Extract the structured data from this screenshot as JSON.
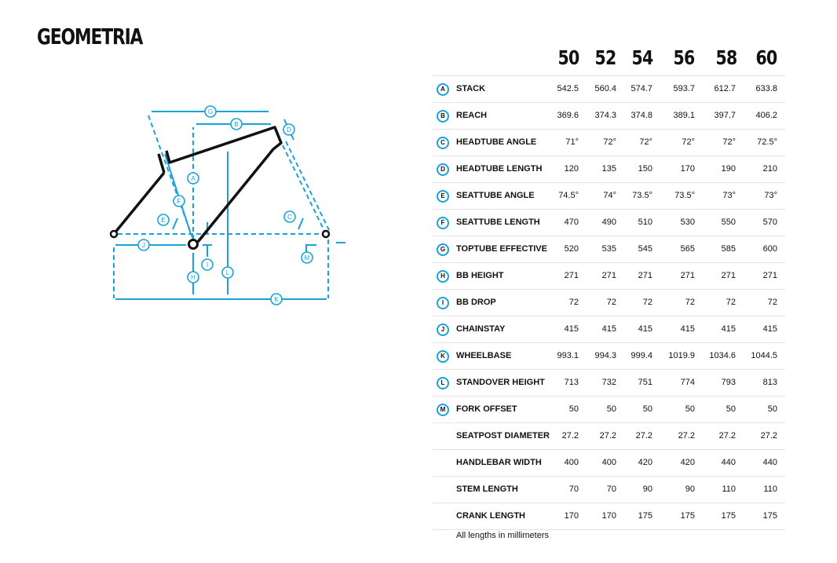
{
  "title": "GEOMETRIA",
  "accent_color": "#1aa3d8",
  "diagram": {
    "labels": [
      "G",
      "B",
      "D",
      "A",
      "F",
      "E",
      "C",
      "J",
      "I",
      "M",
      "H",
      "L",
      "K"
    ]
  },
  "table": {
    "sizes": [
      "50",
      "52",
      "54",
      "56",
      "58",
      "60"
    ],
    "rows": [
      {
        "letter": "A",
        "name": "STACK",
        "values": [
          "542.5",
          "560.4",
          "574.7",
          "593.7",
          "612.7",
          "633.8"
        ]
      },
      {
        "letter": "B",
        "name": "REACH",
        "values": [
          "369.6",
          "374.3",
          "374.8",
          "389.1",
          "397.7",
          "406.2"
        ]
      },
      {
        "letter": "C",
        "name": "HEADTUBE ANGLE",
        "values": [
          "71°",
          "72°",
          "72°",
          "72°",
          "72°",
          "72.5°"
        ]
      },
      {
        "letter": "D",
        "name": "HEADTUBE LENGTH",
        "values": [
          "120",
          "135",
          "150",
          "170",
          "190",
          "210"
        ]
      },
      {
        "letter": "E",
        "name": "SEATTUBE ANGLE",
        "values": [
          "74.5°",
          "74°",
          "73.5°",
          "73.5°",
          "73°",
          "73°"
        ]
      },
      {
        "letter": "F",
        "name": "SEATTUBE LENGTH",
        "values": [
          "470",
          "490",
          "510",
          "530",
          "550",
          "570"
        ]
      },
      {
        "letter": "G",
        "name": "TOPTUBE EFFECTIVE",
        "values": [
          "520",
          "535",
          "545",
          "565",
          "585",
          "600"
        ]
      },
      {
        "letter": "H",
        "name": "BB HEIGHT",
        "values": [
          "271",
          "271",
          "271",
          "271",
          "271",
          "271"
        ]
      },
      {
        "letter": "I",
        "name": "BB DROP",
        "values": [
          "72",
          "72",
          "72",
          "72",
          "72",
          "72"
        ]
      },
      {
        "letter": "J",
        "name": "CHAINSTAY",
        "values": [
          "415",
          "415",
          "415",
          "415",
          "415",
          "415"
        ]
      },
      {
        "letter": "K",
        "name": "WHEELBASE",
        "values": [
          "993.1",
          "994.3",
          "999.4",
          "1019.9",
          "1034.6",
          "1044.5"
        ]
      },
      {
        "letter": "L",
        "name": "STANDOVER HEIGHT",
        "values": [
          "713",
          "732",
          "751",
          "774",
          "793",
          "813"
        ]
      },
      {
        "letter": "M",
        "name": "FORK OFFSET",
        "values": [
          "50",
          "50",
          "50",
          "50",
          "50",
          "50"
        ]
      },
      {
        "letter": "",
        "name": "SEATPOST DIAMETER",
        "values": [
          "27.2",
          "27.2",
          "27.2",
          "27.2",
          "27.2",
          "27.2"
        ]
      },
      {
        "letter": "",
        "name": "HANDLEBAR WIDTH",
        "values": [
          "400",
          "400",
          "420",
          "420",
          "440",
          "440"
        ]
      },
      {
        "letter": "",
        "name": "STEM LENGTH",
        "values": [
          "70",
          "70",
          "90",
          "90",
          "110",
          "110"
        ]
      },
      {
        "letter": "",
        "name": "CRANK LENGTH",
        "values": [
          "170",
          "170",
          "175",
          "175",
          "175",
          "175"
        ]
      }
    ],
    "note": "All lengths in millimeters"
  }
}
